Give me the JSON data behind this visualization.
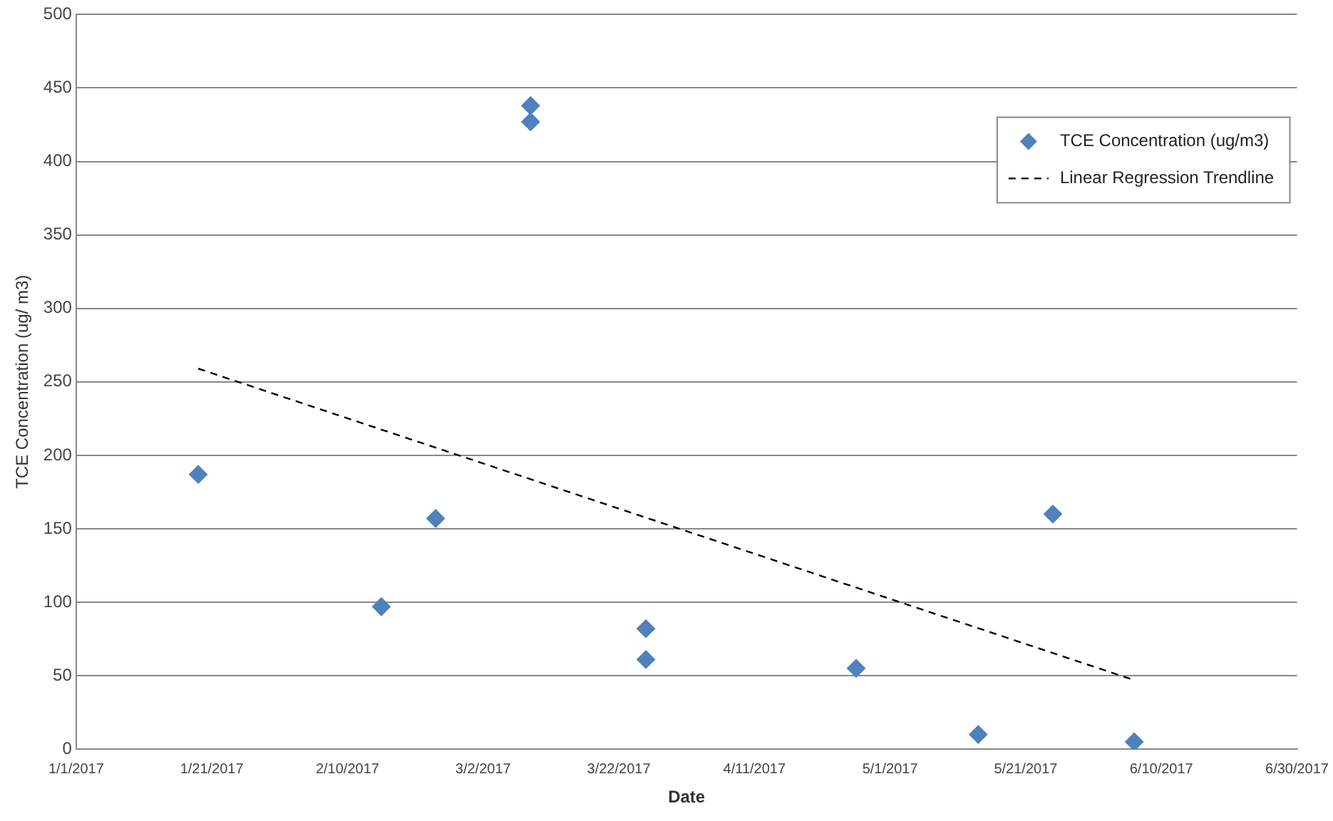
{
  "chart_data": {
    "type": "scatter",
    "xlabel": "Date",
    "ylabel": "TCE Concentration (ug/ m3)",
    "xlim": [
      "2017-01-01",
      "2017-06-30"
    ],
    "xticks": [
      {
        "value": "2017-01-01",
        "label": "1/1/2017"
      },
      {
        "value": "2017-01-21",
        "label": "1/21/2017"
      },
      {
        "value": "2017-02-10",
        "label": "2/10/2017"
      },
      {
        "value": "2017-03-02",
        "label": "3/2/2017"
      },
      {
        "value": "2017-03-22",
        "label": "3/22/2017"
      },
      {
        "value": "2017-04-11",
        "label": "4/11/2017"
      },
      {
        "value": "2017-05-01",
        "label": "5/1/2017"
      },
      {
        "value": "2017-05-21",
        "label": "5/21/2017"
      },
      {
        "value": "2017-06-10",
        "label": "6/10/2017"
      },
      {
        "value": "2017-06-30",
        "label": "6/30/2017"
      }
    ],
    "ylim": [
      0,
      500
    ],
    "yticks": [
      0,
      50,
      100,
      150,
      200,
      250,
      300,
      350,
      400,
      450,
      500
    ],
    "grid": "y",
    "legend": "top right",
    "series": [
      {
        "name": "TCE Concentration (ug/m3)",
        "type": "scatter",
        "marker": "diamond",
        "color": "#4f81bd",
        "x": [
          "2017-01-19",
          "2017-02-15",
          "2017-02-23",
          "2017-03-09",
          "2017-03-09",
          "2017-03-26",
          "2017-03-26",
          "2017-04-26",
          "2017-05-14",
          "2017-05-25",
          "2017-06-06"
        ],
        "values": [
          187,
          97,
          157,
          438,
          427,
          82,
          61,
          55,
          10,
          160,
          5
        ]
      },
      {
        "name": "Linear Regression Trendline",
        "type": "line",
        "marker": "none",
        "line_style": "dashed",
        "color": "#000000",
        "x": [
          "2017-01-19",
          "2017-06-06"
        ],
        "values": [
          259,
          47
        ]
      }
    ]
  }
}
